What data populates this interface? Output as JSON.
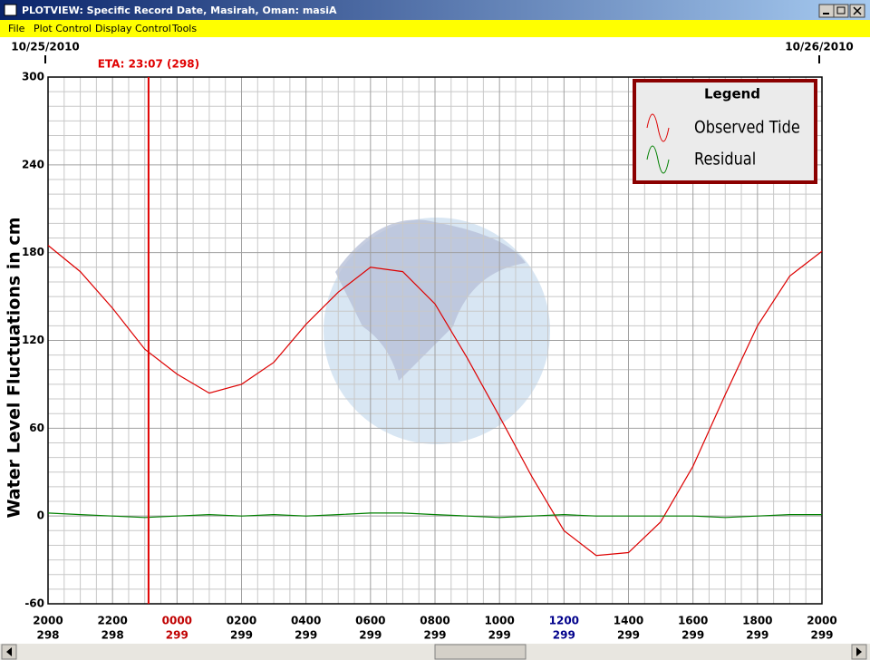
{
  "window": {
    "title": "PLOTVIEW: Specific Record Date, Masirah, Oman: masiA"
  },
  "menu": [
    "File",
    "Plot Control",
    "Display Control",
    "Tools"
  ],
  "chart_data": {
    "type": "line",
    "ylabel": "Water Level Fluctuations in cm",
    "date_labels": [
      "10/25/2010",
      "10/26/2010"
    ],
    "annotation": {
      "label": "ETA: 23:07 (298)",
      "x": 3.1167,
      "color": "#e00000"
    },
    "legend_title": "Legend",
    "xlim": [
      0,
      24
    ],
    "xticks": [
      {
        "value": 0,
        "label": "2000",
        "day": "298",
        "color": "#000000"
      },
      {
        "value": 2,
        "label": "2200",
        "day": "298",
        "color": "#000000"
      },
      {
        "value": 4,
        "label": "0000",
        "day": "299",
        "color": "#c00000"
      },
      {
        "value": 6,
        "label": "0200",
        "day": "299",
        "color": "#000000"
      },
      {
        "value": 8,
        "label": "0400",
        "day": "299",
        "color": "#000000"
      },
      {
        "value": 10,
        "label": "0600",
        "day": "299",
        "color": "#000000"
      },
      {
        "value": 12,
        "label": "0800",
        "day": "299",
        "color": "#000000"
      },
      {
        "value": 14,
        "label": "1000",
        "day": "299",
        "color": "#000000"
      },
      {
        "value": 16,
        "label": "1200",
        "day": "299",
        "color": "#00008b"
      },
      {
        "value": 18,
        "label": "1400",
        "day": "299",
        "color": "#000000"
      },
      {
        "value": 20,
        "label": "1600",
        "day": "299",
        "color": "#000000"
      },
      {
        "value": 22,
        "label": "1800",
        "day": "299",
        "color": "#000000"
      },
      {
        "value": 24,
        "label": "2000",
        "day": "299",
        "color": "#000000"
      }
    ],
    "ylim": [
      -60,
      300
    ],
    "yticks": [
      -60,
      0,
      60,
      120,
      180,
      240,
      300
    ],
    "grid": true,
    "x": [
      0,
      1,
      2,
      3,
      4,
      5,
      6,
      7,
      8,
      9,
      10,
      11,
      12,
      13,
      14,
      15,
      16,
      17,
      18,
      19,
      20,
      21,
      22,
      23,
      24
    ],
    "series": [
      {
        "name": "Observed Tide",
        "color": "#dd0000",
        "values": [
          185,
          167,
          142,
          114,
          97,
          84,
          90,
          105,
          131,
          153,
          170,
          167,
          145,
          108,
          68,
          27,
          -10,
          -27,
          -25,
          -4,
          34,
          83,
          130,
          164,
          181
        ]
      },
      {
        "name": "Residual",
        "color": "#008000",
        "values": [
          2,
          1,
          0,
          -1,
          0,
          1,
          0,
          1,
          0,
          1,
          2,
          2,
          1,
          0,
          -1,
          0,
          1,
          0,
          0,
          0,
          0,
          -1,
          0,
          1,
          1
        ]
      }
    ]
  }
}
